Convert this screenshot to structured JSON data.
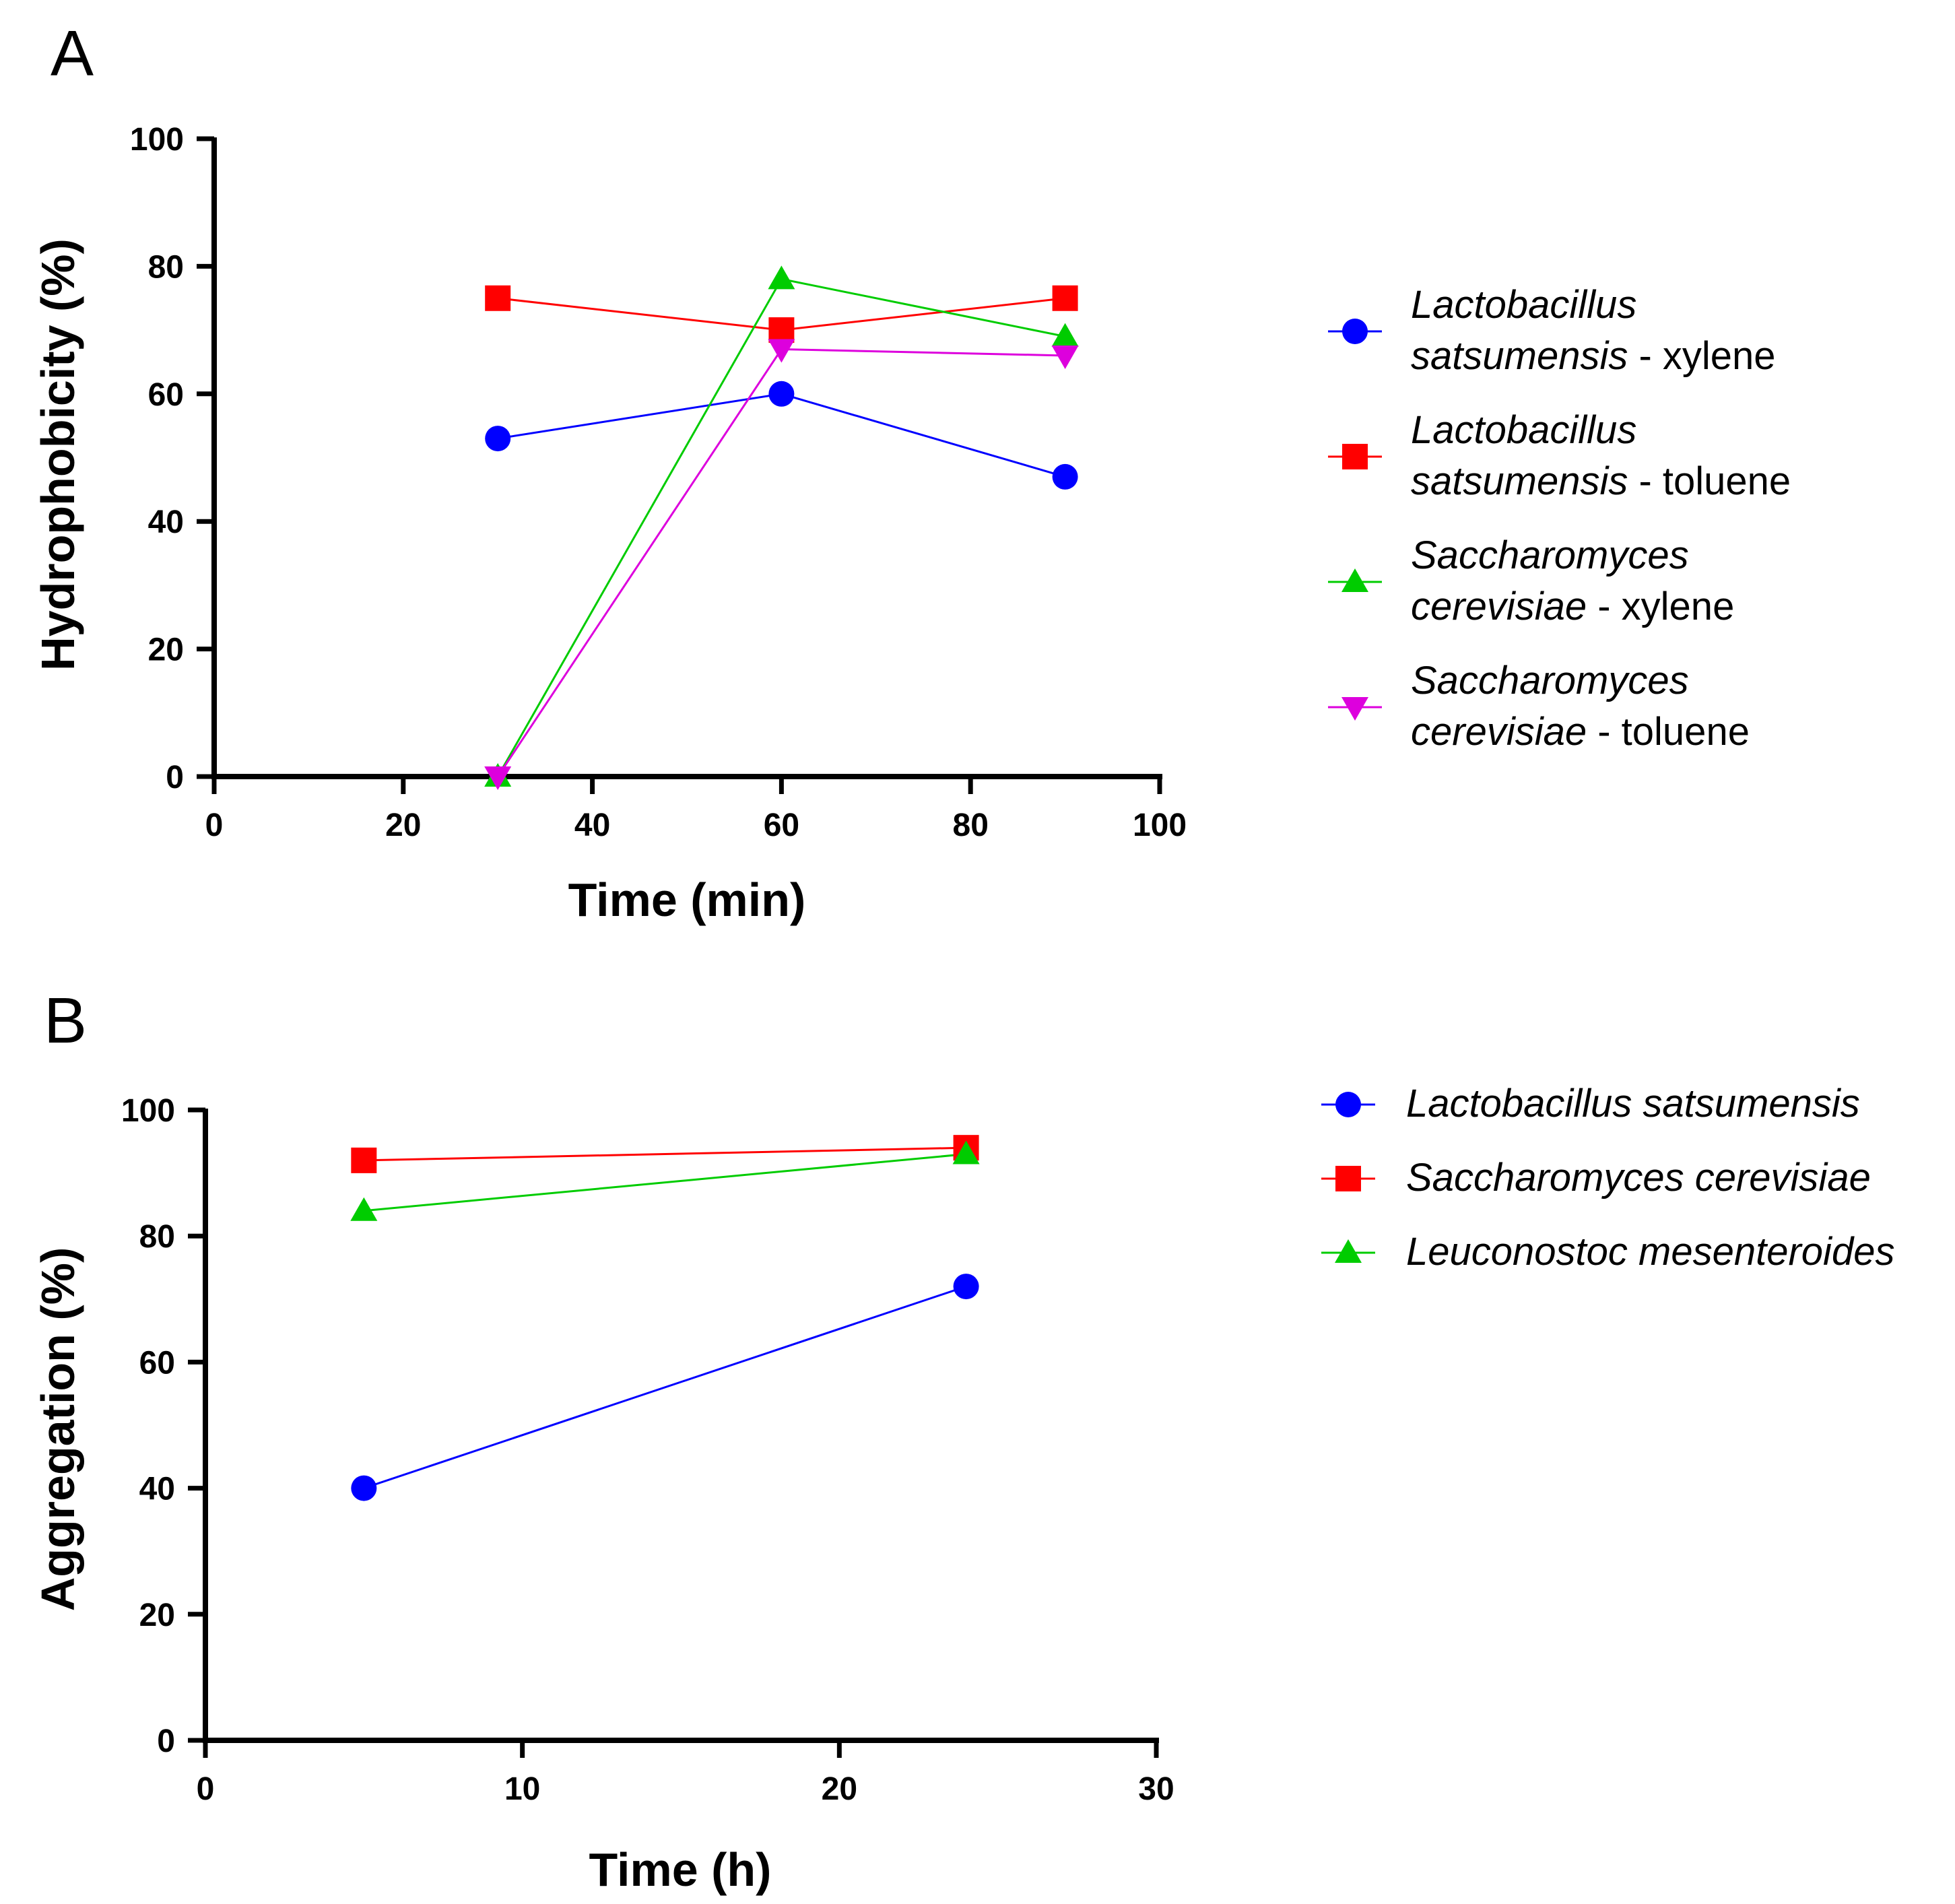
{
  "chart_data": [
    {
      "panel": "A",
      "type": "line",
      "title": "",
      "xlabel": "Time (min)",
      "ylabel": "Hydrophobicity (%)",
      "xlim": [
        0,
        100
      ],
      "ylim": [
        0,
        100
      ],
      "xticks": [
        0,
        20,
        40,
        60,
        80,
        100
      ],
      "yticks": [
        0,
        20,
        40,
        60,
        80,
        100
      ],
      "x": [
        30,
        60,
        90
      ],
      "series": [
        {
          "name": "Lactobacillus satsumensis - xylene",
          "italic_part": "Lactobacillus satsumensis",
          "suffix": " - xylene",
          "legend_lines": [
            {
              "italic": "Lactobacillus",
              "plain": ""
            },
            {
              "italic": "satsumensis",
              "plain": " - xylene"
            }
          ],
          "marker": "circle",
          "color": "#0000ff",
          "values": [
            53,
            60,
            47
          ]
        },
        {
          "name": "Lactobacillus satsumensis - toluene",
          "italic_part": "Lactobacillus satsumensis",
          "suffix": " - toluene",
          "legend_lines": [
            {
              "italic": "Lactobacillus",
              "plain": ""
            },
            {
              "italic": "satsumensis",
              "plain": " - toluene"
            }
          ],
          "marker": "square",
          "color": "#ff0000",
          "values": [
            75,
            70,
            75
          ]
        },
        {
          "name": "Saccharomyces cerevisiae - xylene",
          "italic_part": "Saccharomyces cerevisiae",
          "suffix": " - xylene",
          "legend_lines": [
            {
              "italic": "Saccharomyces",
              "plain": ""
            },
            {
              "italic": "cerevisiae",
              "plain": " - xylene"
            }
          ],
          "marker": "triangle-up",
          "color": "#00cc00",
          "values": [
            0,
            78,
            69
          ]
        },
        {
          "name": "Saccharomyces cerevisiae - toluene",
          "italic_part": "Saccharomyces cerevisiae",
          "suffix": " - toluene",
          "legend_lines": [
            {
              "italic": "Saccharomyces",
              "plain": ""
            },
            {
              "italic": "cerevisiae",
              "plain": " - toluene"
            }
          ],
          "marker": "triangle-down",
          "color": "#dd00dd",
          "values": [
            0,
            67,
            66
          ]
        }
      ],
      "legend_position": "right"
    },
    {
      "panel": "B",
      "type": "line",
      "title": "",
      "xlabel": "Time (h)",
      "ylabel": "Aggregation (%)",
      "xlim": [
        0,
        30
      ],
      "ylim": [
        0,
        100
      ],
      "xticks": [
        0,
        10,
        20,
        30
      ],
      "yticks": [
        0,
        20,
        40,
        60,
        80,
        100
      ],
      "x": [
        5,
        24
      ],
      "series": [
        {
          "name": "Lactobacillus satsumensis",
          "legend_lines": [
            {
              "italic": "Lactobacillus satsumensis",
              "plain": ""
            }
          ],
          "marker": "circle",
          "color": "#0000ff",
          "values": [
            40,
            72
          ]
        },
        {
          "name": "Saccharomyces cerevisiae",
          "legend_lines": [
            {
              "italic": "Saccharomyces cerevisiae",
              "plain": ""
            }
          ],
          "marker": "square",
          "color": "#ff0000",
          "values": [
            92,
            94
          ]
        },
        {
          "name": "Leuconostoc mesenteroides",
          "legend_lines": [
            {
              "italic": "Leuconostoc mesenteroides",
              "plain": ""
            }
          ],
          "marker": "triangle-up",
          "color": "#00cc00",
          "values": [
            84,
            93
          ]
        }
      ],
      "legend_position": "top-right"
    }
  ]
}
